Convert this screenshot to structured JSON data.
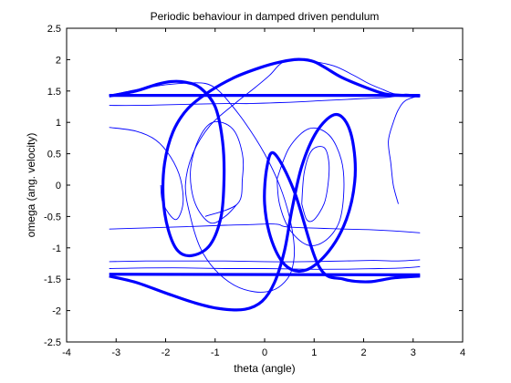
{
  "chart_data": {
    "type": "line",
    "title": "Periodic behaviour in damped driven pendulum",
    "xlabel": "theta (angle)",
    "ylabel": "omega (ang. velocity)",
    "xlim": [
      -4,
      4
    ],
    "ylim": [
      -2.5,
      2.5
    ],
    "xticks": [
      -4,
      -3,
      -2,
      -1,
      0,
      1,
      2,
      3,
      4
    ],
    "yticks": [
      -2.5,
      -2,
      -1.5,
      -1,
      -0.5,
      0,
      0.5,
      1,
      1.5,
      2,
      2.5
    ],
    "grid": false,
    "legend": "none",
    "color": "#0000ff",
    "series": [
      {
        "style": "transient",
        "x": [
          -3.14,
          -2.6,
          -2.0,
          -1.5,
          -1.2,
          -1.0,
          -0.8,
          -0.4,
          0.0,
          0.3,
          0.5,
          0.6,
          0.55,
          0.4,
          0.15,
          -0.2,
          -0.6,
          -1.0,
          -1.3,
          -1.5,
          -1.6,
          -1.45,
          -1.1,
          -0.6,
          -0.2,
          0.1,
          0.3,
          0.5,
          0.9,
          1.4,
          1.8,
          2.1,
          2.4,
          2.6,
          2.9,
          3.14
        ],
        "y": [
          1.43,
          1.52,
          1.6,
          1.63,
          1.62,
          1.55,
          1.4,
          1.0,
          0.5,
          0.0,
          -0.5,
          -1.0,
          -1.35,
          -1.55,
          -1.68,
          -1.7,
          -1.6,
          -1.35,
          -1.0,
          -0.5,
          0.0,
          0.5,
          0.95,
          1.3,
          1.55,
          1.75,
          1.92,
          2.0,
          1.98,
          1.9,
          1.75,
          1.62,
          1.52,
          1.46,
          1.44,
          1.43
        ]
      },
      {
        "style": "transient",
        "x": [
          -3.14,
          -2.6,
          -2.2,
          -1.9,
          -1.7,
          -1.65,
          -1.8,
          -2.05,
          -2.1
        ],
        "y": [
          0.92,
          0.86,
          0.72,
          0.45,
          0.1,
          -0.3,
          -0.55,
          -0.3,
          0.0
        ]
      },
      {
        "style": "transient",
        "x": [
          -3.14,
          -2.3,
          -1.5,
          -0.8,
          -0.3,
          0.0,
          0.2,
          0.3,
          0.35,
          0.4,
          0.5,
          0.8,
          1.2,
          1.6,
          2.1,
          2.6,
          3.14
        ],
        "y": [
          -0.7,
          -0.68,
          -0.66,
          -0.64,
          -0.63,
          -0.62,
          -0.62,
          -0.63,
          -0.65,
          -0.66,
          -0.67,
          -0.68,
          -0.69,
          -0.7,
          -0.71,
          -0.73,
          -0.76
        ]
      },
      {
        "style": "transient",
        "x": [
          -3.14,
          -2.6,
          -2.0,
          -1.4,
          -0.8,
          -0.3,
          0.1,
          0.5,
          1.0,
          1.5,
          2.0,
          2.5,
          2.85,
          3.14
        ],
        "y": [
          1.27,
          1.27,
          1.28,
          1.29,
          1.3,
          1.3,
          1.31,
          1.32,
          1.34,
          1.36,
          1.38,
          1.4,
          1.45,
          1.42
        ]
      },
      {
        "style": "transient",
        "x": [
          -3.14,
          -2.4,
          -1.6,
          -0.8,
          0.0,
          0.8,
          1.6,
          2.2,
          2.7,
          3.14
        ],
        "y": [
          -1.22,
          -1.21,
          -1.21,
          -1.21,
          -1.22,
          -1.22,
          -1.21,
          -1.2,
          -1.21,
          -1.19
        ]
      },
      {
        "style": "transient",
        "x": [
          -3.14,
          -2.4,
          -1.6,
          -0.8,
          0.0,
          0.8,
          1.6,
          2.3,
          2.8,
          3.14
        ],
        "y": [
          -1.33,
          -1.32,
          -1.32,
          -1.33,
          -1.33,
          -1.34,
          -1.34,
          -1.33,
          -1.32,
          -1.3
        ]
      },
      {
        "style": "transient",
        "x": [
          2.7,
          2.6,
          2.55,
          2.5,
          2.6,
          2.7,
          2.85,
          3.14
        ],
        "y": [
          -0.3,
          0.0,
          0.35,
          0.7,
          1.0,
          1.2,
          1.35,
          1.43
        ]
      },
      {
        "style": "transient",
        "x": [
          -1.2,
          -0.55,
          -0.45,
          -0.45,
          -0.65,
          -1.05,
          -1.35,
          -1.5,
          -1.4,
          -1.1,
          -0.8,
          -0.55
        ],
        "y": [
          -0.5,
          -0.3,
          0.1,
          0.5,
          0.9,
          1.0,
          0.7,
          0.2,
          -0.3,
          -0.6,
          -0.5,
          -0.3
        ]
      },
      {
        "style": "transient",
        "x": [
          0.75,
          0.85,
          1.0,
          1.2,
          1.28,
          1.3,
          1.2,
          0.95,
          0.8,
          0.75
        ],
        "y": [
          -0.3,
          -0.55,
          -0.55,
          -0.3,
          0.0,
          0.35,
          0.6,
          0.55,
          0.2,
          -0.3
        ]
      },
      {
        "style": "transient",
        "x": [
          0.25,
          0.5,
          0.9,
          1.3,
          1.55,
          1.6,
          1.5,
          1.2,
          0.85,
          0.5,
          0.3,
          0.25
        ],
        "y": [
          0.1,
          0.6,
          0.9,
          0.8,
          0.4,
          -0.1,
          -0.6,
          -0.9,
          -0.95,
          -0.7,
          -0.3,
          0.1
        ]
      },
      {
        "style": "attractor",
        "x": [
          -3.14,
          -2.6,
          -2.2,
          -1.9,
          -1.6,
          -1.3,
          -1.0,
          -0.85,
          -0.82,
          -0.88,
          -1.1,
          -1.45,
          -1.75,
          -1.95,
          -2.05,
          -2.02,
          -1.85,
          -1.55,
          -1.1,
          -0.6,
          -0.1,
          0.3,
          0.6,
          0.8,
          0.95,
          1.05,
          1.25,
          1.55,
          2.0,
          2.45,
          2.85,
          3.14
        ],
        "y": [
          1.42,
          1.5,
          1.6,
          1.65,
          1.64,
          1.55,
          1.25,
          0.7,
          0.1,
          -0.5,
          -0.95,
          -1.12,
          -1.05,
          -0.7,
          -0.2,
          0.35,
          0.85,
          1.22,
          1.5,
          1.72,
          1.87,
          1.96,
          2.0,
          2.0,
          1.98,
          1.95,
          1.86,
          1.72,
          1.57,
          1.45,
          1.43,
          1.42
        ]
      },
      {
        "style": "attractor",
        "x": [
          -3.14,
          -2.6,
          -2.0,
          -1.4,
          -0.9,
          -0.4,
          -0.05,
          0.2,
          0.4,
          0.55,
          0.75,
          1.05,
          1.4,
          1.65,
          1.8,
          1.82,
          1.65,
          1.3,
          0.85,
          0.45,
          0.15,
          0.0,
          0.05,
          0.2,
          0.6,
          1.1,
          1.6,
          2.1,
          2.6,
          3.14
        ],
        "y": [
          -1.45,
          -1.55,
          -1.72,
          -1.88,
          -1.97,
          -1.98,
          -1.85,
          -1.55,
          -1.05,
          -0.4,
          0.3,
          0.85,
          1.12,
          1.0,
          0.6,
          0.05,
          -0.55,
          -1.05,
          -1.35,
          -1.3,
          -0.9,
          -0.3,
          0.3,
          0.5,
          -0.1,
          -1.3,
          -1.5,
          -1.54,
          -1.48,
          -1.45
        ]
      },
      {
        "style": "attractor",
        "x": [
          -3.14,
          3.14
        ],
        "y": [
          1.43,
          1.43
        ]
      },
      {
        "style": "attractor",
        "x": [
          -3.14,
          3.14
        ],
        "y": [
          -1.42,
          -1.43
        ]
      }
    ]
  }
}
